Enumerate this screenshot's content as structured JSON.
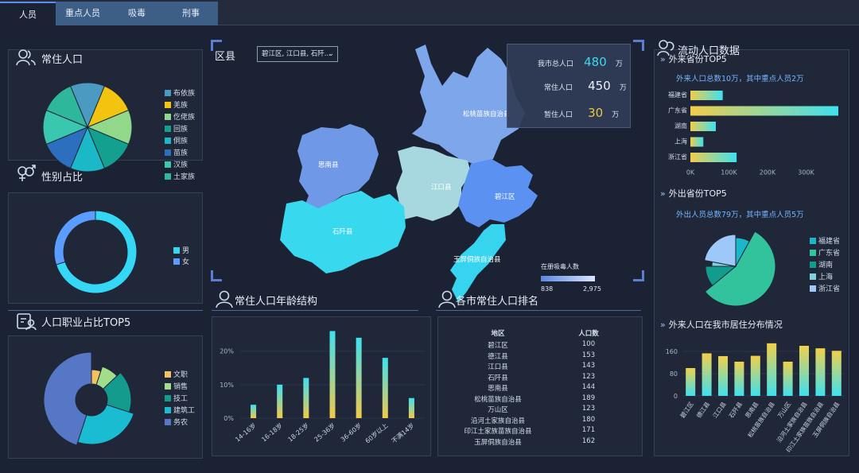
{
  "tabs": [
    {
      "label": "人员"
    },
    {
      "label": "重点人员"
    },
    {
      "label": "吸毒"
    },
    {
      "label": "刑事"
    }
  ],
  "left": {
    "ethnicity": {
      "title": "常住人口",
      "legend": [
        {
          "label": "布依族",
          "color": "#4a9ac2"
        },
        {
          "label": "羌族",
          "color": "#f2c40f"
        },
        {
          "label": "仡佬族",
          "color": "#91d88b"
        },
        {
          "label": "回族",
          "color": "#14a08f"
        },
        {
          "label": "侗族",
          "color": "#1bb8c8"
        },
        {
          "label": "苗族",
          "color": "#2d6fbf"
        },
        {
          "label": "汉族",
          "color": "#39c7b0"
        },
        {
          "label": "土家族",
          "color": "#2eb79a"
        }
      ]
    },
    "gender": {
      "title": "性别占比",
      "legend": [
        {
          "label": "男",
          "color": "#34d8f5"
        },
        {
          "label": "女",
          "color": "#5b9dff"
        }
      ],
      "male_share": 0.7
    },
    "occupation": {
      "title": "人口职业占比TOP5",
      "legend": [
        {
          "label": "文职",
          "color": "#f0c35e"
        },
        {
          "label": "销售",
          "color": "#a2dd8a"
        },
        {
          "label": "技工",
          "color": "#139c8d"
        },
        {
          "label": "建筑工",
          "color": "#19bcd1"
        },
        {
          "label": "务农",
          "color": "#5577c5"
        }
      ]
    }
  },
  "center": {
    "map": {
      "label": "区县",
      "select_value": "碧江区, 江口县, 石阡...",
      "stats": [
        {
          "label": "我市总人口",
          "value": "480",
          "unit": "万",
          "color": "#3fd7ee"
        },
        {
          "label": "常住人口",
          "value": "450",
          "unit": "万",
          "color": "#e9eef6"
        },
        {
          "label": "暂住人口",
          "value": "30",
          "unit": "万",
          "color": "#f0c24a"
        }
      ],
      "regions": [
        "松桃苗族自治县",
        "思南县",
        "江口县",
        "碧江区",
        "石阡县",
        "玉屏侗族自治县"
      ],
      "legend_title": "在册吸毒人数",
      "legend_min": "838",
      "legend_max": "2,975"
    },
    "age": {
      "title": "常住人口年龄结构",
      "yticks": [
        "20%",
        "10%",
        "0%"
      ],
      "categories": [
        "14-16岁",
        "16-18岁",
        "18-25岁",
        "25-36岁",
        "36-60岁",
        "60岁以上",
        "不满14岁"
      ]
    },
    "ranking": {
      "title": "各市常住人口排名",
      "headers": [
        "地区",
        "人口数"
      ],
      "rows": [
        [
          "碧江区",
          "100"
        ],
        [
          "德江县",
          "153"
        ],
        [
          "江口县",
          "143"
        ],
        [
          "石阡县",
          "123"
        ],
        [
          "思南县",
          "144"
        ],
        [
          "松桃苗族自治县",
          "189"
        ],
        [
          "万山区",
          "123"
        ],
        [
          "沿河土家族自治县",
          "180"
        ],
        [
          "印江土家族苗族自治县",
          "171"
        ],
        [
          "玉屏侗族自治县",
          "162"
        ]
      ]
    }
  },
  "right": {
    "title": "流动人口数据",
    "inbound": {
      "subtitle": "外来省份TOP5",
      "note": "外来人口总数10万，其中重点人员2万",
      "xticks": [
        "0K",
        "100K",
        "200K",
        "300K"
      ]
    },
    "outbound": {
      "subtitle": "外出省份TOP5",
      "note": "外出人员总数79万，其中重点人员5万",
      "legend": [
        {
          "label": "福建省",
          "color": "#1ab7c9"
        },
        {
          "label": "广东省",
          "color": "#33c39c"
        },
        {
          "label": "湖南",
          "color": "#129c8d"
        },
        {
          "label": "上海",
          "color": "#80d0e0"
        },
        {
          "label": "浙江省",
          "color": "#9ec8f7"
        }
      ]
    },
    "distribution": {
      "subtitle": "外来人口在我市居住分布情况",
      "yticks": [
        "160",
        "80",
        "0"
      ],
      "categories": [
        "碧江区",
        "德江县",
        "江口县",
        "石阡县",
        "思南县",
        "松桃苗族自治县",
        "万山区",
        "沿河土家族自治县",
        "印江土家族苗族自治县",
        "玉屏侗族自治县"
      ]
    }
  },
  "chart_data": [
    {
      "type": "pie",
      "title": "常住人口",
      "categories": [
        "布依族",
        "羌族",
        "仡佬族",
        "回族",
        "侗族",
        "苗族",
        "汉族",
        "土家族"
      ],
      "values": [
        12.5,
        12.5,
        12.5,
        12.5,
        12.5,
        12.5,
        12.5,
        12.5
      ]
    },
    {
      "type": "pie",
      "title": "性别占比",
      "categories": [
        "男",
        "女"
      ],
      "values": [
        70,
        30
      ]
    },
    {
      "type": "pie",
      "title": "人口职业占比TOP5",
      "categories": [
        "文职",
        "销售",
        "技工",
        "建筑工",
        "务农"
      ],
      "values": [
        5,
        8,
        17,
        25,
        45
      ]
    },
    {
      "type": "bar",
      "title": "常住人口年龄结构",
      "categories": [
        "14-16岁",
        "16-18岁",
        "18-25岁",
        "25-36岁",
        "36-60岁",
        "60岁以上",
        "不满14岁"
      ],
      "values": [
        4,
        10,
        12,
        26,
        24,
        18,
        6
      ],
      "ylim": [
        0,
        28
      ]
    },
    {
      "type": "bar",
      "title": "外来省份TOP5",
      "categories": [
        "福建省",
        "广东省",
        "湖南",
        "上海",
        "浙江省"
      ],
      "values": [
        70000,
        320000,
        55000,
        28000,
        100000
      ],
      "xlim": [
        0,
        320000
      ]
    },
    {
      "type": "pie",
      "title": "外出省份TOP5",
      "categories": [
        "福建省",
        "广东省",
        "湖南",
        "上海",
        "浙江省"
      ],
      "values": [
        8,
        56,
        11,
        3,
        22
      ]
    },
    {
      "type": "bar",
      "title": "外来人口在我市居住分布情况",
      "categories": [
        "碧江区",
        "德江县",
        "江口县",
        "石阡县",
        "思南县",
        "松桃苗族自治县",
        "万山区",
        "沿河土家族自治县",
        "印江土家族苗族自治县",
        "玉屏侗族自治县"
      ],
      "values": [
        100,
        153,
        143,
        123,
        144,
        189,
        123,
        180,
        171,
        162
      ],
      "ylim": [
        0,
        200
      ]
    }
  ]
}
